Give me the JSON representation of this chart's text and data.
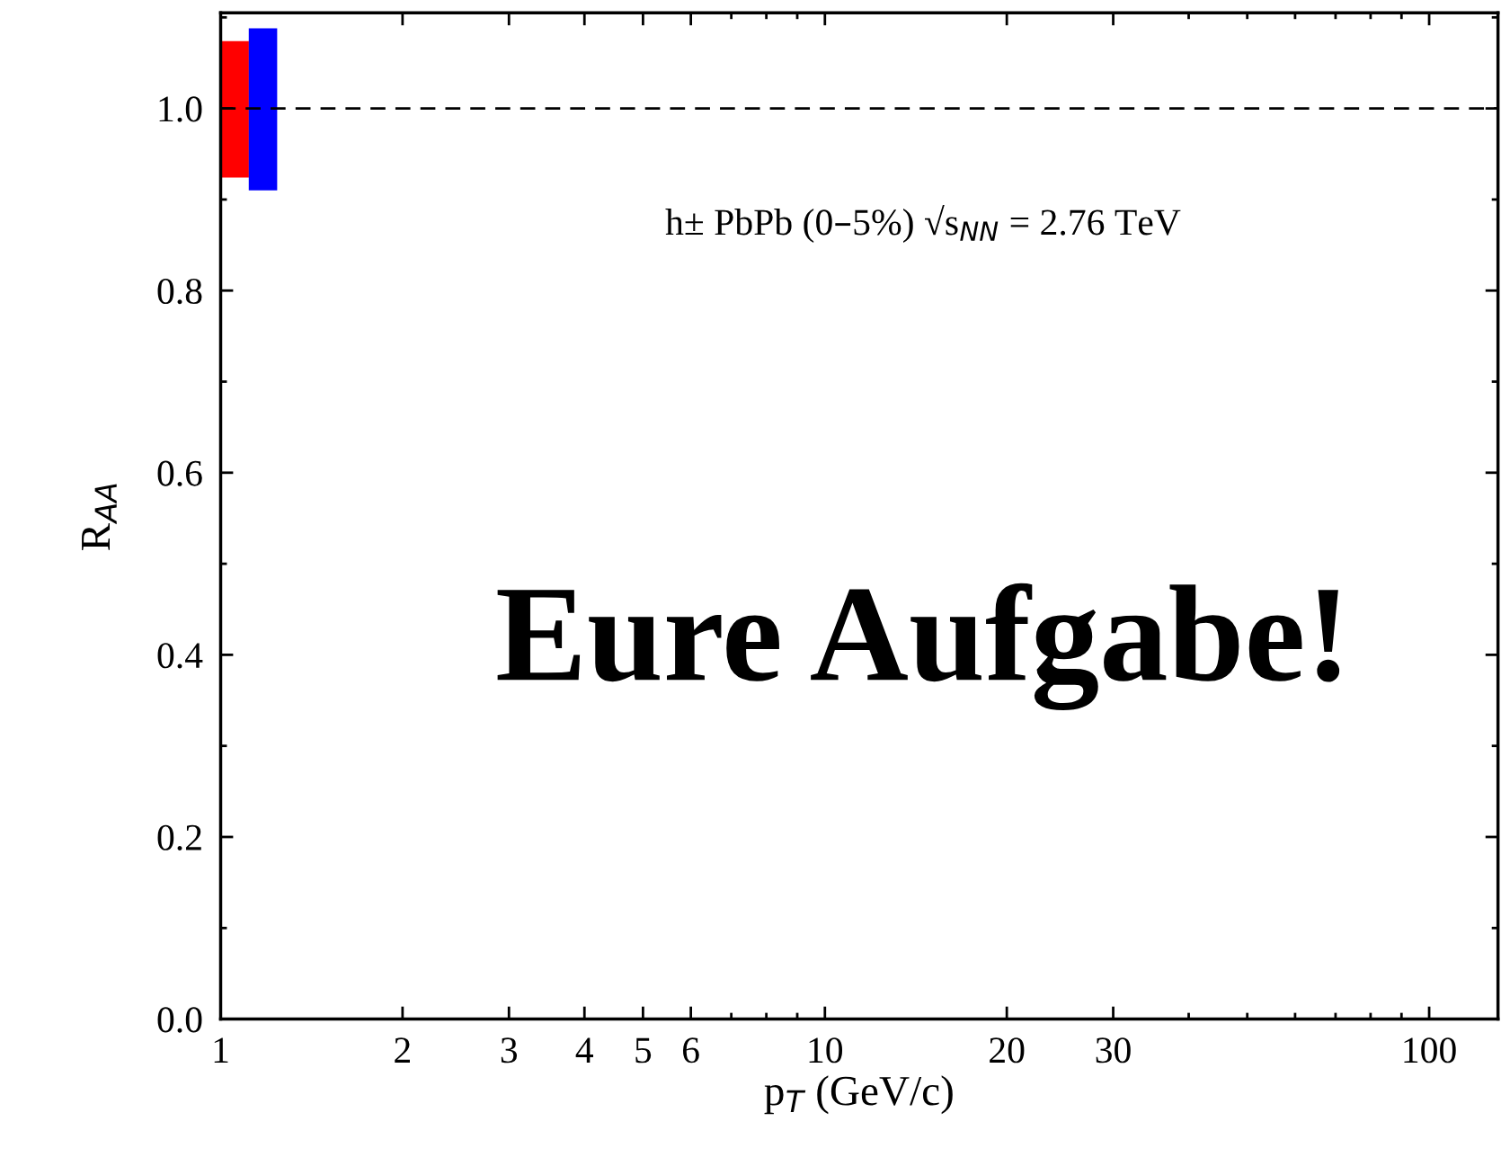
{
  "chart_data": {
    "type": "bar",
    "xlabel": "p$_{T}$ (GeV/c)",
    "ylabel": "R$_{AA}$",
    "series": [
      {
        "color": "#ff0000",
        "x": [
          1.055
        ],
        "base": [
          0.924
        ],
        "values": [
          0.15
        ]
      },
      {
        "color": "#0000ff",
        "x": [
          1.175
        ],
        "base": [
          0.91
        ],
        "values": [
          0.178
        ]
      }
    ],
    "log": "x",
    "xlim": [
      1,
      130
    ],
    "xticks": [
      1,
      2,
      3,
      4,
      5,
      6,
      10,
      20,
      30,
      100
    ],
    "ylim": [
      0,
      1.105
    ],
    "yticks": [
      {
        "value": 0,
        "label": "0.0"
      },
      0.2,
      0.4,
      0.6,
      0.8,
      {
        "value": 1,
        "label": "1.0"
      }
    ],
    "ref_lines": [
      {
        "axis": "y",
        "value": 1.0,
        "color": "#000000",
        "line_style": "dashed"
      }
    ],
    "annotations": [
      "h± PbPb (0–5%) √s$_{NN}$ = 2.76 TeV",
      "Eure Aufgabe!"
    ],
    "grid": false
  }
}
